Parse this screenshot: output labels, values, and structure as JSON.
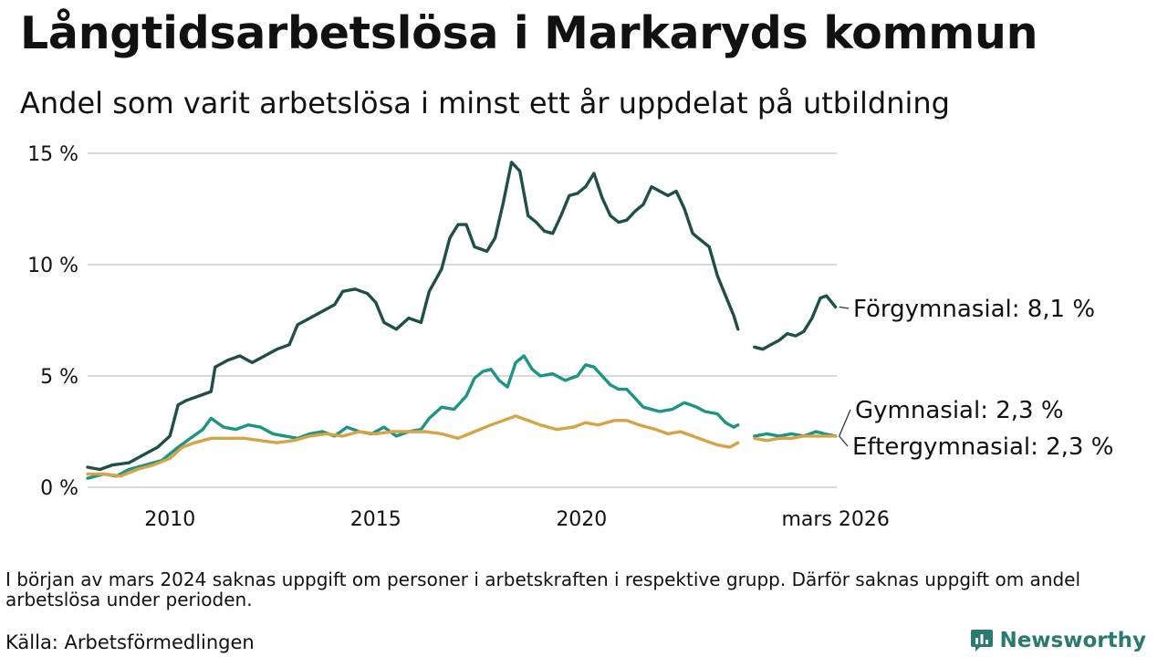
{
  "title": "Långtidsarbetslösa i Markaryds kommun",
  "subtitle": "Andel som varit arbetslösa i minst ett år uppdelat på utbildning",
  "note": "I början av mars 2024 saknas uppgift om personer i arbetskraften i respektive grupp. Därför saknas uppgift om andel arbetslösa under perioden.",
  "source": "Källa: Arbetsförmedlingen",
  "brand": "Newsworthy",
  "colors": {
    "forgymnasial": "#1f4f48",
    "gymnasial": "#1d9485",
    "eftergymnasial": "#d4a447",
    "grid": "#d9d9d9",
    "text": "#111111",
    "brand": "#2a7a6f"
  },
  "chart_data": {
    "type": "line",
    "x_unit": "year",
    "xlim": [
      2008.0,
      2026.2
    ],
    "ylim": [
      0,
      15
    ],
    "y_ticks": [
      0,
      5,
      10,
      15
    ],
    "y_tick_labels": [
      "0 %",
      "5 %",
      "10 %",
      "15 %"
    ],
    "x_ticks": [
      2010,
      2015,
      2020,
      2026.17
    ],
    "x_tick_labels": [
      "2010",
      "2015",
      "2020",
      "mars 2026"
    ],
    "gap": {
      "note": "saknas uppgift",
      "from": 2023.8,
      "to": 2024.2
    },
    "series": [
      {
        "name": "Förgymnasial",
        "end_label": "Förgymnasial: 8,1 %",
        "color": "#1f4f48",
        "points": [
          [
            2008.0,
            0.9
          ],
          [
            2008.3,
            0.8
          ],
          [
            2008.6,
            1.0
          ],
          [
            2009.0,
            1.1
          ],
          [
            2009.4,
            1.5
          ],
          [
            2009.7,
            1.8
          ],
          [
            2010.0,
            2.3
          ],
          [
            2010.2,
            3.7
          ],
          [
            2010.4,
            3.9
          ],
          [
            2010.7,
            4.1
          ],
          [
            2011.0,
            4.3
          ],
          [
            2011.1,
            5.4
          ],
          [
            2011.4,
            5.7
          ],
          [
            2011.7,
            5.9
          ],
          [
            2012.0,
            5.6
          ],
          [
            2012.3,
            5.9
          ],
          [
            2012.6,
            6.2
          ],
          [
            2012.9,
            6.4
          ],
          [
            2013.1,
            7.3
          ],
          [
            2013.4,
            7.6
          ],
          [
            2013.7,
            7.9
          ],
          [
            2014.0,
            8.2
          ],
          [
            2014.2,
            8.8
          ],
          [
            2014.5,
            8.9
          ],
          [
            2014.8,
            8.7
          ],
          [
            2015.0,
            8.3
          ],
          [
            2015.2,
            7.4
          ],
          [
            2015.5,
            7.1
          ],
          [
            2015.8,
            7.6
          ],
          [
            2016.1,
            7.4
          ],
          [
            2016.3,
            8.8
          ],
          [
            2016.6,
            9.8
          ],
          [
            2016.8,
            11.2
          ],
          [
            2017.0,
            11.8
          ],
          [
            2017.2,
            11.8
          ],
          [
            2017.4,
            10.8
          ],
          [
            2017.7,
            10.6
          ],
          [
            2017.9,
            11.2
          ],
          [
            2018.1,
            12.8
          ],
          [
            2018.3,
            14.6
          ],
          [
            2018.5,
            14.2
          ],
          [
            2018.7,
            12.2
          ],
          [
            2018.9,
            11.9
          ],
          [
            2019.1,
            11.5
          ],
          [
            2019.3,
            11.4
          ],
          [
            2019.5,
            12.2
          ],
          [
            2019.7,
            13.1
          ],
          [
            2019.9,
            13.2
          ],
          [
            2020.1,
            13.5
          ],
          [
            2020.3,
            14.1
          ],
          [
            2020.5,
            13.0
          ],
          [
            2020.7,
            12.2
          ],
          [
            2020.9,
            11.9
          ],
          [
            2021.1,
            12.0
          ],
          [
            2021.3,
            12.4
          ],
          [
            2021.5,
            12.7
          ],
          [
            2021.7,
            13.5
          ],
          [
            2021.9,
            13.3
          ],
          [
            2022.1,
            13.1
          ],
          [
            2022.3,
            13.3
          ],
          [
            2022.5,
            12.5
          ],
          [
            2022.7,
            11.4
          ],
          [
            2022.9,
            11.1
          ],
          [
            2023.1,
            10.8
          ],
          [
            2023.3,
            9.5
          ],
          [
            2023.5,
            8.6
          ],
          [
            2023.7,
            7.7
          ],
          [
            2023.8,
            7.1
          ],
          null,
          [
            2024.2,
            6.3
          ],
          [
            2024.4,
            6.2
          ],
          [
            2024.6,
            6.4
          ],
          [
            2024.8,
            6.6
          ],
          [
            2025.0,
            6.9
          ],
          [
            2025.2,
            6.8
          ],
          [
            2025.4,
            7.0
          ],
          [
            2025.6,
            7.6
          ],
          [
            2025.8,
            8.5
          ],
          [
            2025.95,
            8.6
          ],
          [
            2026.17,
            8.1
          ]
        ]
      },
      {
        "name": "Gymnasial",
        "end_label": "Gymnasial: 2,3 %",
        "color": "#1d9485",
        "points": [
          [
            2008.0,
            0.4
          ],
          [
            2008.4,
            0.6
          ],
          [
            2008.7,
            0.5
          ],
          [
            2009.0,
            0.8
          ],
          [
            2009.4,
            1.0
          ],
          [
            2009.8,
            1.2
          ],
          [
            2010.2,
            1.8
          ],
          [
            2010.5,
            2.2
          ],
          [
            2010.8,
            2.6
          ],
          [
            2011.0,
            3.1
          ],
          [
            2011.3,
            2.7
          ],
          [
            2011.6,
            2.6
          ],
          [
            2011.9,
            2.8
          ],
          [
            2012.2,
            2.7
          ],
          [
            2012.5,
            2.4
          ],
          [
            2012.8,
            2.3
          ],
          [
            2013.1,
            2.2
          ],
          [
            2013.4,
            2.4
          ],
          [
            2013.7,
            2.5
          ],
          [
            2014.0,
            2.3
          ],
          [
            2014.3,
            2.7
          ],
          [
            2014.6,
            2.5
          ],
          [
            2014.9,
            2.4
          ],
          [
            2015.2,
            2.7
          ],
          [
            2015.5,
            2.3
          ],
          [
            2015.8,
            2.5
          ],
          [
            2016.1,
            2.6
          ],
          [
            2016.3,
            3.1
          ],
          [
            2016.6,
            3.6
          ],
          [
            2016.9,
            3.5
          ],
          [
            2017.2,
            4.1
          ],
          [
            2017.4,
            4.9
          ],
          [
            2017.6,
            5.2
          ],
          [
            2017.8,
            5.3
          ],
          [
            2018.0,
            4.8
          ],
          [
            2018.2,
            4.5
          ],
          [
            2018.4,
            5.6
          ],
          [
            2018.6,
            5.9
          ],
          [
            2018.8,
            5.3
          ],
          [
            2019.0,
            5.0
          ],
          [
            2019.3,
            5.1
          ],
          [
            2019.6,
            4.8
          ],
          [
            2019.9,
            5.0
          ],
          [
            2020.1,
            5.5
          ],
          [
            2020.3,
            5.4
          ],
          [
            2020.5,
            5.0
          ],
          [
            2020.7,
            4.6
          ],
          [
            2020.9,
            4.4
          ],
          [
            2021.1,
            4.4
          ],
          [
            2021.3,
            4.0
          ],
          [
            2021.5,
            3.6
          ],
          [
            2021.7,
            3.5
          ],
          [
            2021.9,
            3.4
          ],
          [
            2022.2,
            3.5
          ],
          [
            2022.5,
            3.8
          ],
          [
            2022.8,
            3.6
          ],
          [
            2023.0,
            3.4
          ],
          [
            2023.3,
            3.3
          ],
          [
            2023.5,
            2.9
          ],
          [
            2023.7,
            2.7
          ],
          [
            2023.8,
            2.8
          ],
          null,
          [
            2024.2,
            2.3
          ],
          [
            2024.5,
            2.4
          ],
          [
            2024.8,
            2.3
          ],
          [
            2025.1,
            2.4
          ],
          [
            2025.4,
            2.3
          ],
          [
            2025.7,
            2.5
          ],
          [
            2025.9,
            2.4
          ],
          [
            2026.17,
            2.3
          ]
        ]
      },
      {
        "name": "Eftergymnasial",
        "end_label": "Eftergymnasial: 2,3 %",
        "color": "#d4a447",
        "points": [
          [
            2008.0,
            0.6
          ],
          [
            2008.4,
            0.6
          ],
          [
            2008.8,
            0.5
          ],
          [
            2009.2,
            0.8
          ],
          [
            2009.6,
            1.0
          ],
          [
            2010.0,
            1.3
          ],
          [
            2010.3,
            1.8
          ],
          [
            2010.6,
            2.0
          ],
          [
            2011.0,
            2.2
          ],
          [
            2011.4,
            2.2
          ],
          [
            2011.8,
            2.2
          ],
          [
            2012.2,
            2.1
          ],
          [
            2012.6,
            2.0
          ],
          [
            2013.0,
            2.1
          ],
          [
            2013.4,
            2.3
          ],
          [
            2013.8,
            2.4
          ],
          [
            2014.2,
            2.3
          ],
          [
            2014.6,
            2.5
          ],
          [
            2015.0,
            2.4
          ],
          [
            2015.4,
            2.5
          ],
          [
            2015.8,
            2.5
          ],
          [
            2016.2,
            2.5
          ],
          [
            2016.6,
            2.4
          ],
          [
            2017.0,
            2.2
          ],
          [
            2017.4,
            2.5
          ],
          [
            2017.8,
            2.8
          ],
          [
            2018.1,
            3.0
          ],
          [
            2018.4,
            3.2
          ],
          [
            2018.7,
            3.0
          ],
          [
            2019.0,
            2.8
          ],
          [
            2019.4,
            2.6
          ],
          [
            2019.8,
            2.7
          ],
          [
            2020.1,
            2.9
          ],
          [
            2020.4,
            2.8
          ],
          [
            2020.8,
            3.0
          ],
          [
            2021.1,
            3.0
          ],
          [
            2021.4,
            2.8
          ],
          [
            2021.8,
            2.6
          ],
          [
            2022.1,
            2.4
          ],
          [
            2022.4,
            2.5
          ],
          [
            2022.7,
            2.3
          ],
          [
            2023.0,
            2.1
          ],
          [
            2023.3,
            1.9
          ],
          [
            2023.6,
            1.8
          ],
          [
            2023.8,
            2.0
          ],
          null,
          [
            2024.2,
            2.2
          ],
          [
            2024.5,
            2.1
          ],
          [
            2024.8,
            2.2
          ],
          [
            2025.1,
            2.2
          ],
          [
            2025.4,
            2.3
          ],
          [
            2025.7,
            2.3
          ],
          [
            2025.9,
            2.3
          ],
          [
            2026.17,
            2.3
          ]
        ]
      }
    ]
  }
}
